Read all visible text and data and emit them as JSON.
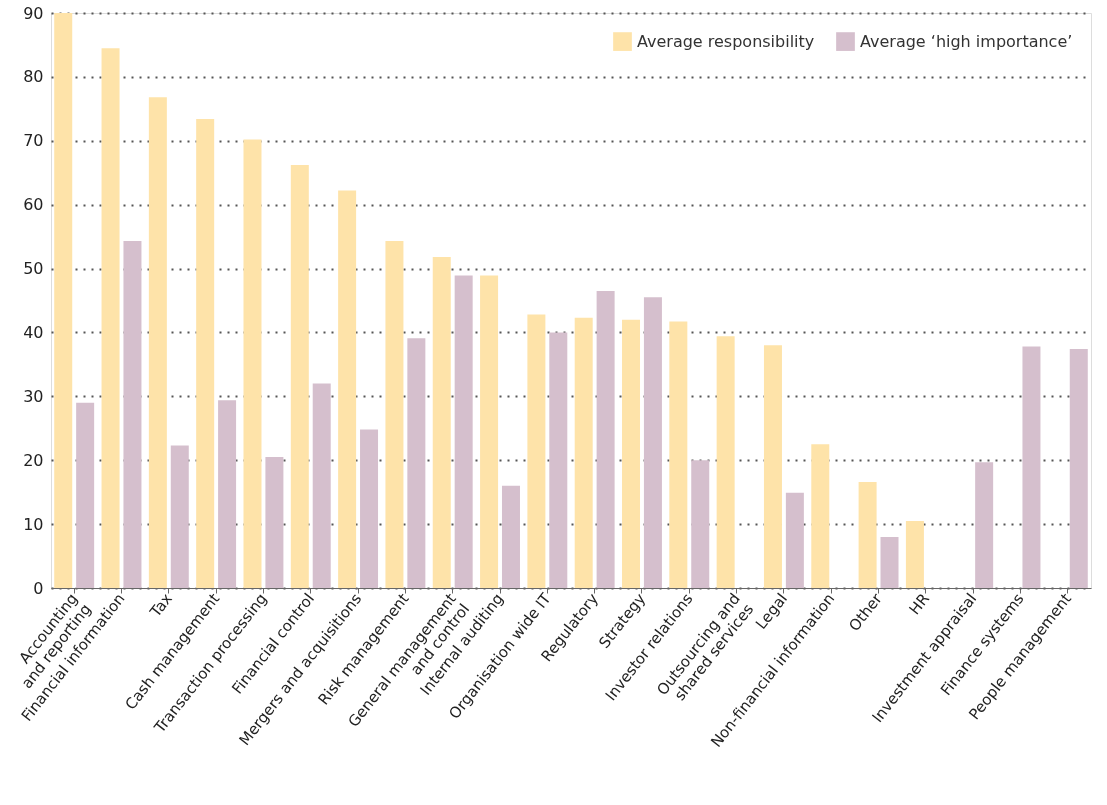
{
  "chart_data": {
    "type": "bar",
    "categories": [
      "Accounting\nand reporting",
      "Financial information",
      "Tax",
      "Cash management",
      "Transaction processing",
      "Financial control",
      "Mergers and acquisitions",
      "Risk management",
      "General management\nand control",
      "Internal auditing",
      "Organisation wide IT",
      "Regulatory",
      "Strategy",
      "Investor relations",
      "Outsourcing and\nshared services",
      "Legal",
      "Non-financial information",
      "Other",
      "HR",
      "Investment appraisal",
      "Finance systems",
      "People management"
    ],
    "series": [
      {
        "name": "Average responsibility",
        "color": "#fee3a9",
        "values": [
          90,
          84.5,
          76.8,
          73.4,
          70.2,
          66.2,
          62.2,
          54.3,
          51.8,
          48.9,
          42.8,
          42.3,
          42,
          41.7,
          39.4,
          38,
          22.5,
          16.6,
          10.5,
          null,
          null,
          null
        ]
      },
      {
        "name": "Average ‘high importance’",
        "color": "#d5bfcd",
        "values": [
          29,
          54.3,
          22.3,
          29.4,
          20.5,
          32,
          24.8,
          39.1,
          48.9,
          16,
          40,
          46.5,
          45.5,
          20,
          null,
          14.9,
          null,
          8,
          null,
          19.7,
          37.8,
          37.4
        ]
      }
    ],
    "ylim": [
      0,
      90
    ],
    "yticks": [
      0,
      10,
      20,
      30,
      40,
      50,
      60,
      70,
      80,
      90
    ],
    "grid": "y",
    "legend": "top right"
  }
}
